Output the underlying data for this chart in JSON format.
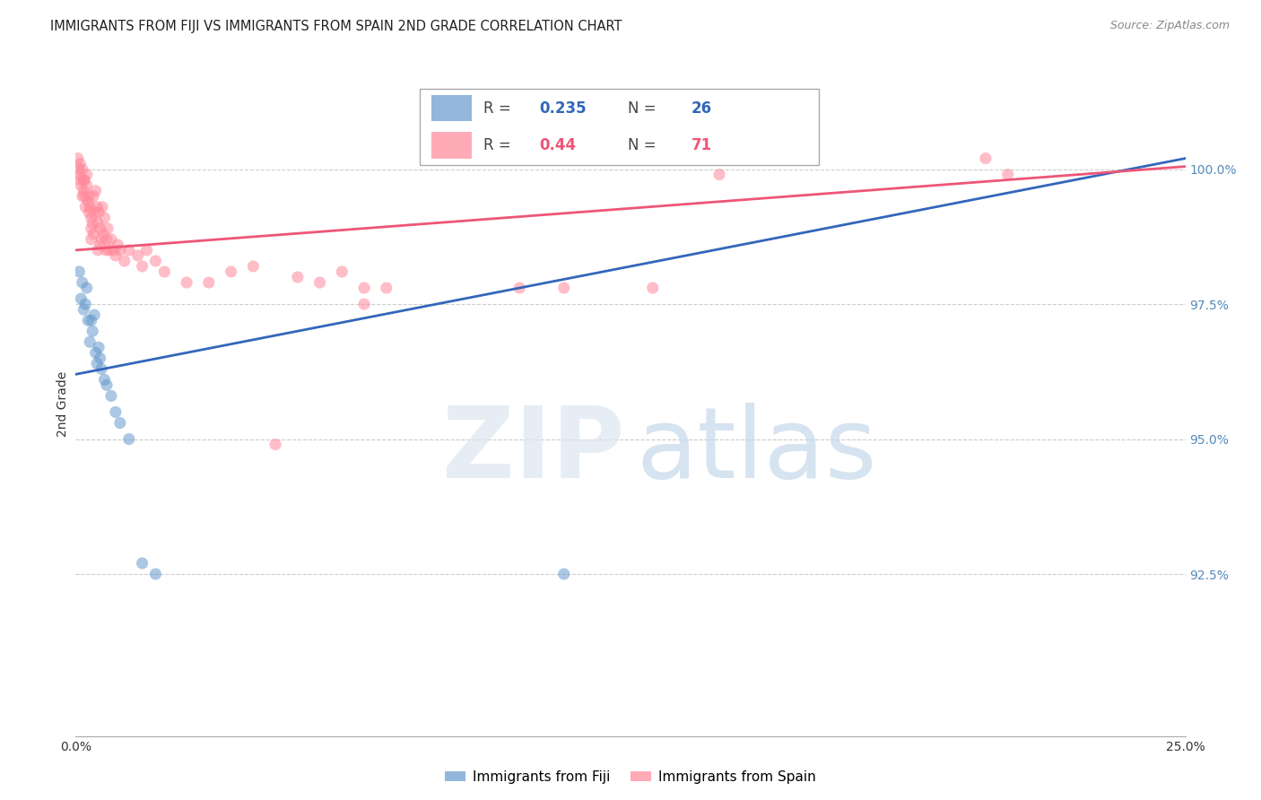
{
  "title": "IMMIGRANTS FROM FIJI VS IMMIGRANTS FROM SPAIN 2ND GRADE CORRELATION CHART",
  "source": "Source: ZipAtlas.com",
  "ylabel": "2nd Grade",
  "xlim": [
    0.0,
    25.0
  ],
  "ylim": [
    89.5,
    101.8
  ],
  "x_ticks": [
    0.0,
    5.0,
    10.0,
    15.0,
    20.0,
    25.0
  ],
  "x_tick_labels": [
    "0.0%",
    "",
    "",
    "",
    "",
    "25.0%"
  ],
  "y_ticks_right": [
    92.5,
    95.0,
    97.5,
    100.0
  ],
  "y_tick_labels_right": [
    "92.5%",
    "95.0%",
    "97.5%",
    "100.0%"
  ],
  "fiji_color": "#6699CC",
  "spain_color": "#FF8899",
  "fiji_line_color": "#3366BB",
  "spain_line_color": "#EE5577",
  "fiji_R": 0.235,
  "fiji_N": 26,
  "spain_R": 0.44,
  "spain_N": 71,
  "fiji_points_x": [
    0.08,
    0.12,
    0.15,
    0.18,
    0.22,
    0.25,
    0.28,
    0.32,
    0.35,
    0.38,
    0.42,
    0.45,
    0.48,
    0.52,
    0.55,
    0.58,
    0.65,
    0.7,
    0.8,
    0.9,
    1.0,
    1.2,
    1.5,
    1.8,
    11.0,
    14.5
  ],
  "fiji_points_y": [
    98.1,
    97.6,
    97.9,
    97.4,
    97.5,
    97.8,
    97.2,
    96.8,
    97.2,
    97.0,
    97.3,
    96.6,
    96.4,
    96.7,
    96.5,
    96.3,
    96.1,
    96.0,
    95.8,
    95.5,
    95.3,
    95.0,
    92.7,
    92.5,
    92.5,
    100.2
  ],
  "spain_points_x": [
    0.05,
    0.07,
    0.08,
    0.1,
    0.1,
    0.12,
    0.15,
    0.15,
    0.18,
    0.18,
    0.2,
    0.2,
    0.22,
    0.25,
    0.25,
    0.28,
    0.3,
    0.3,
    0.32,
    0.35,
    0.35,
    0.35,
    0.38,
    0.4,
    0.4,
    0.42,
    0.45,
    0.48,
    0.5,
    0.5,
    0.52,
    0.55,
    0.55,
    0.58,
    0.6,
    0.62,
    0.65,
    0.68,
    0.7,
    0.72,
    0.75,
    0.8,
    0.85,
    0.9,
    0.95,
    1.0,
    1.1,
    1.2,
    1.4,
    1.5,
    1.6,
    1.8,
    2.0,
    2.5,
    3.0,
    3.5,
    4.0,
    5.0,
    5.5,
    6.0,
    6.5,
    7.0,
    8.0,
    10.0,
    11.0,
    13.0,
    14.5,
    20.5,
    21.0,
    6.5,
    4.5
  ],
  "spain_points_y": [
    100.2,
    100.0,
    99.9,
    100.1,
    99.8,
    99.7,
    100.0,
    99.5,
    99.8,
    99.6,
    99.5,
    99.8,
    99.3,
    99.7,
    99.9,
    99.4,
    99.5,
    99.2,
    99.3,
    98.9,
    99.1,
    98.7,
    99.0,
    99.5,
    98.8,
    99.2,
    99.6,
    99.3,
    99.0,
    98.5,
    99.2,
    98.9,
    98.6,
    98.7,
    99.3,
    98.8,
    99.1,
    98.5,
    98.7,
    98.9,
    98.5,
    98.7,
    98.5,
    98.4,
    98.6,
    98.5,
    98.3,
    98.5,
    98.4,
    98.2,
    98.5,
    98.3,
    98.1,
    97.9,
    97.9,
    98.1,
    98.2,
    98.0,
    97.9,
    98.1,
    97.8,
    97.8,
    100.2,
    97.8,
    97.8,
    97.8,
    99.9,
    100.2,
    99.9,
    97.5,
    94.9
  ],
  "background_color": "#ffffff",
  "grid_color": "#cccccc"
}
